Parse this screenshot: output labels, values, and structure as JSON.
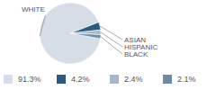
{
  "chart_data": {
    "type": "pie",
    "categories": [
      "WHITE",
      "ASIAN",
      "HISPANIC",
      "BLACK"
    ],
    "values": [
      91.3,
      4.2,
      2.4,
      2.1
    ],
    "value_labels": [
      "91.3%",
      "4.2%",
      "2.4%",
      "2.1%"
    ],
    "colors": [
      "#d5dde6",
      "#2d5a80",
      "#a7b8c9",
      "#6d8ba7"
    ]
  }
}
